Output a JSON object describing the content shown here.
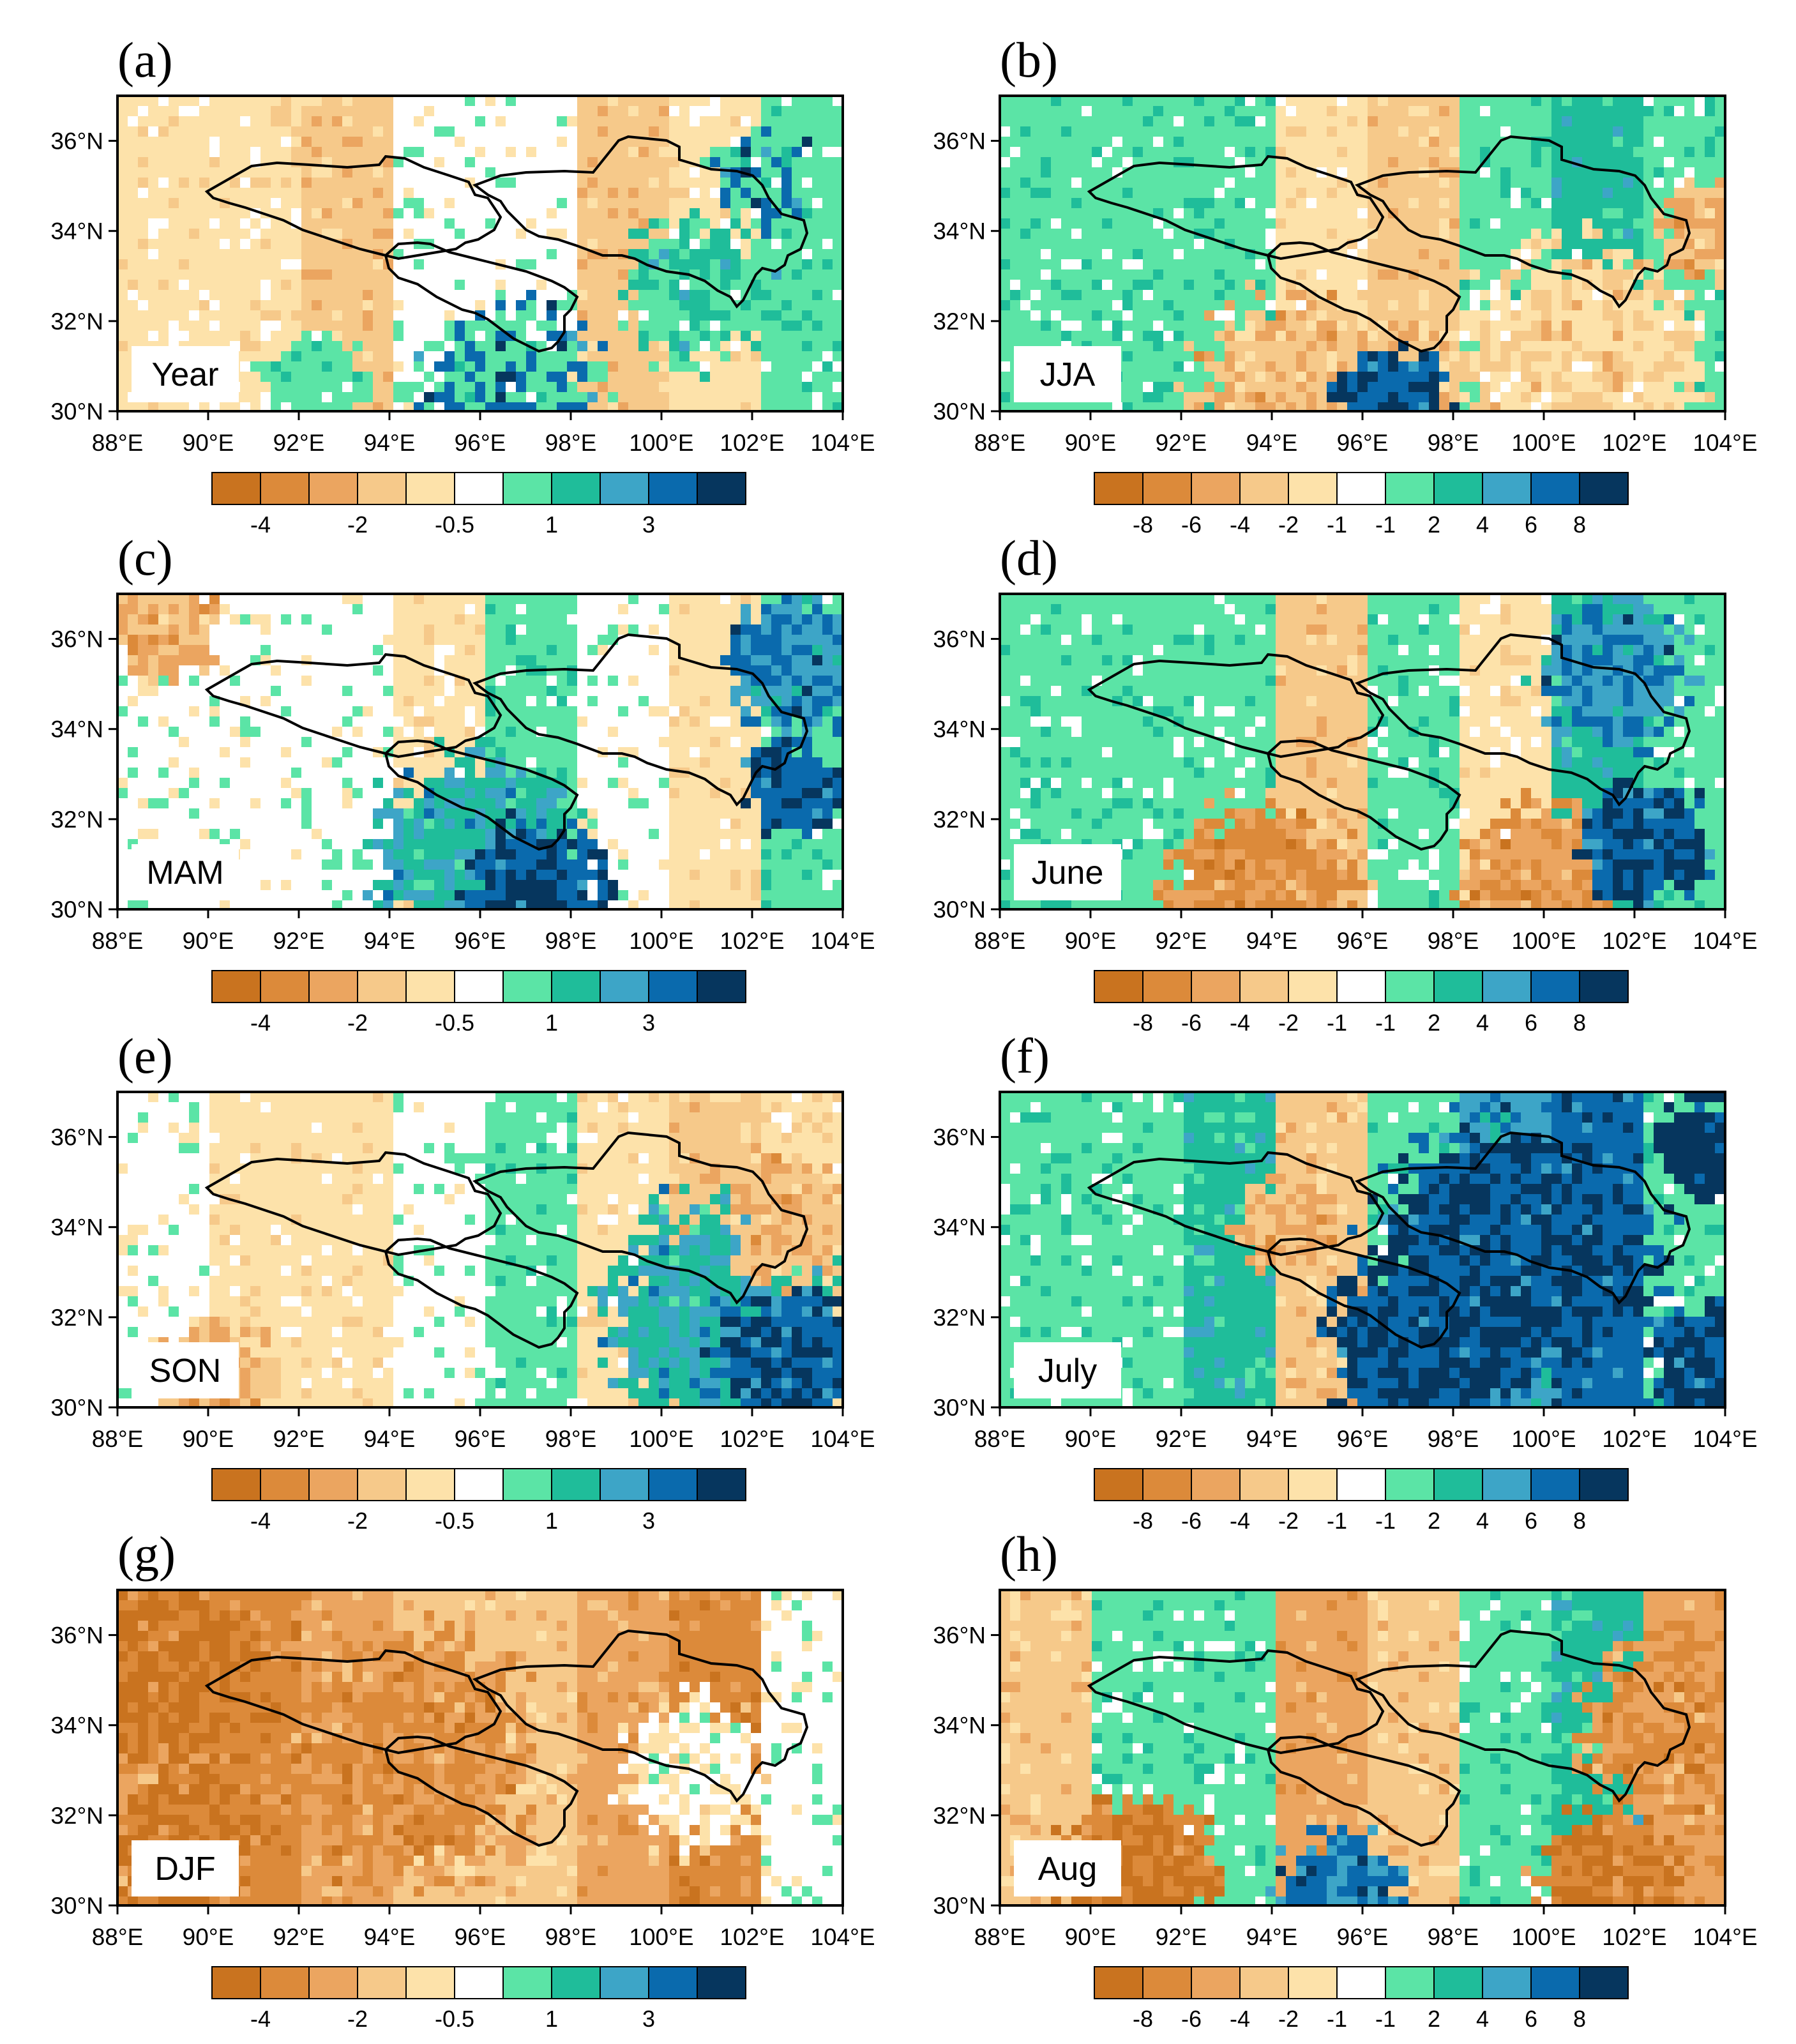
{
  "chart_data": {
    "type": "heatmap",
    "axes": {
      "x_ticks": [
        "88°E",
        "90°E",
        "92°E",
        "94°E",
        "96°E",
        "98°E",
        "100°E",
        "102°E",
        "104°E"
      ],
      "y_ticks": [
        "30°N",
        "32°N",
        "34°N",
        "36°N"
      ],
      "lon_range": [
        88,
        104
      ],
      "lat_range": [
        30,
        37
      ]
    },
    "colorbar_left": {
      "colors": [
        "#c9731f",
        "#dc8a3a",
        "#eba560",
        "#f6c98a",
        "#fde2aa",
        "#ffffff",
        "#5be4a6",
        "#1fbd9a",
        "#3da5c7",
        "#0a6aad",
        "#06365e"
      ],
      "labels": [
        "-4",
        "-2",
        "-0.5",
        "1",
        "3"
      ]
    },
    "colorbar_right": {
      "colors": [
        "#c9731f",
        "#dc8a3a",
        "#eba560",
        "#f6c98a",
        "#fde2aa",
        "#ffffff",
        "#5be4a6",
        "#1fbd9a",
        "#3da5c7",
        "#0a6aad",
        "#06365e"
      ],
      "labels": [
        "-8",
        "-6",
        "-4",
        "-2",
        "-1",
        "-1",
        "2",
        "4",
        "6",
        "8"
      ]
    },
    "panels": [
      {
        "letter": "(a)",
        "label": "Year",
        "scale": "left",
        "pattern": "mostly light orange/white with small green patches; blue near 96°E 30°N and 102°E 36°N"
      },
      {
        "letter": "(b)",
        "label": "JJA",
        "scale": "right",
        "pattern": "mostly green, orange in south and east, dark blue near 96°E 30°N"
      },
      {
        "letter": "(c)",
        "label": "MAM",
        "scale": "left",
        "pattern": "white interior, green/blue in south and east, orange west"
      },
      {
        "letter": "(d)",
        "label": "June",
        "scale": "right",
        "pattern": "green dominant, orange patches in south, blue in east"
      },
      {
        "letter": "(e)",
        "label": "SON",
        "scale": "left",
        "pattern": "white/light orange west, green-blue east"
      },
      {
        "letter": "(f)",
        "label": "July",
        "scale": "right",
        "pattern": "green with dark blue in east and south"
      },
      {
        "letter": "(g)",
        "label": "DJF",
        "scale": "left",
        "pattern": "orange dominant, darker orange in west"
      },
      {
        "letter": "(h)",
        "label": "Aug",
        "scale": "right",
        "pattern": "mixed green/orange, orange in east and southwest"
      }
    ]
  }
}
